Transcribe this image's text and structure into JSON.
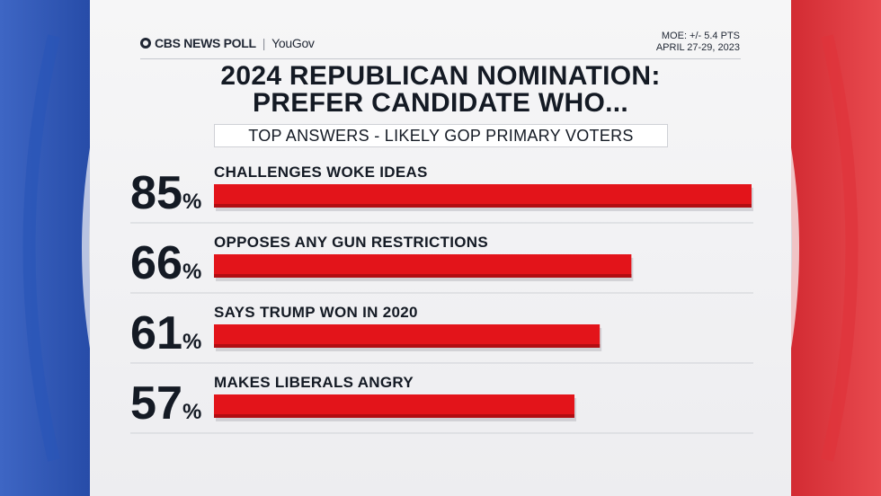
{
  "brand": {
    "network": "CBS NEWS POLL",
    "partner": "YouGov"
  },
  "moe": {
    "line1": "MOE: +/- 5.4 PTS",
    "line2": "APRIL 27-29, 2023"
  },
  "colors": {
    "bar": "#e3141a",
    "bar_shadow": "#b10d12",
    "blue_arc": "#1d4fb5",
    "red_arc": "#d5202a"
  },
  "chart_data": {
    "type": "bar",
    "orientation": "horizontal",
    "title": "2024 REPUBLICAN NOMINATION: PREFER CANDIDATE WHO...",
    "title_lines": [
      "2024 REPUBLICAN NOMINATION:",
      "PREFER CANDIDATE WHO..."
    ],
    "subtitle": "TOP ANSWERS - LIKELY GOP PRIMARY VOTERS",
    "categories": [
      "CHALLENGES WOKE IDEAS",
      "OPPOSES ANY GUN RESTRICTIONS",
      "SAYS TRUMP WON IN 2020",
      "MAKES LIBERALS ANGRY"
    ],
    "values": [
      85,
      66,
      61,
      57
    ],
    "value_labels": [
      "85",
      "66",
      "61",
      "57"
    ],
    "unit": "%",
    "xlim": [
      0,
      85
    ],
    "grid": false,
    "legend": "none"
  }
}
